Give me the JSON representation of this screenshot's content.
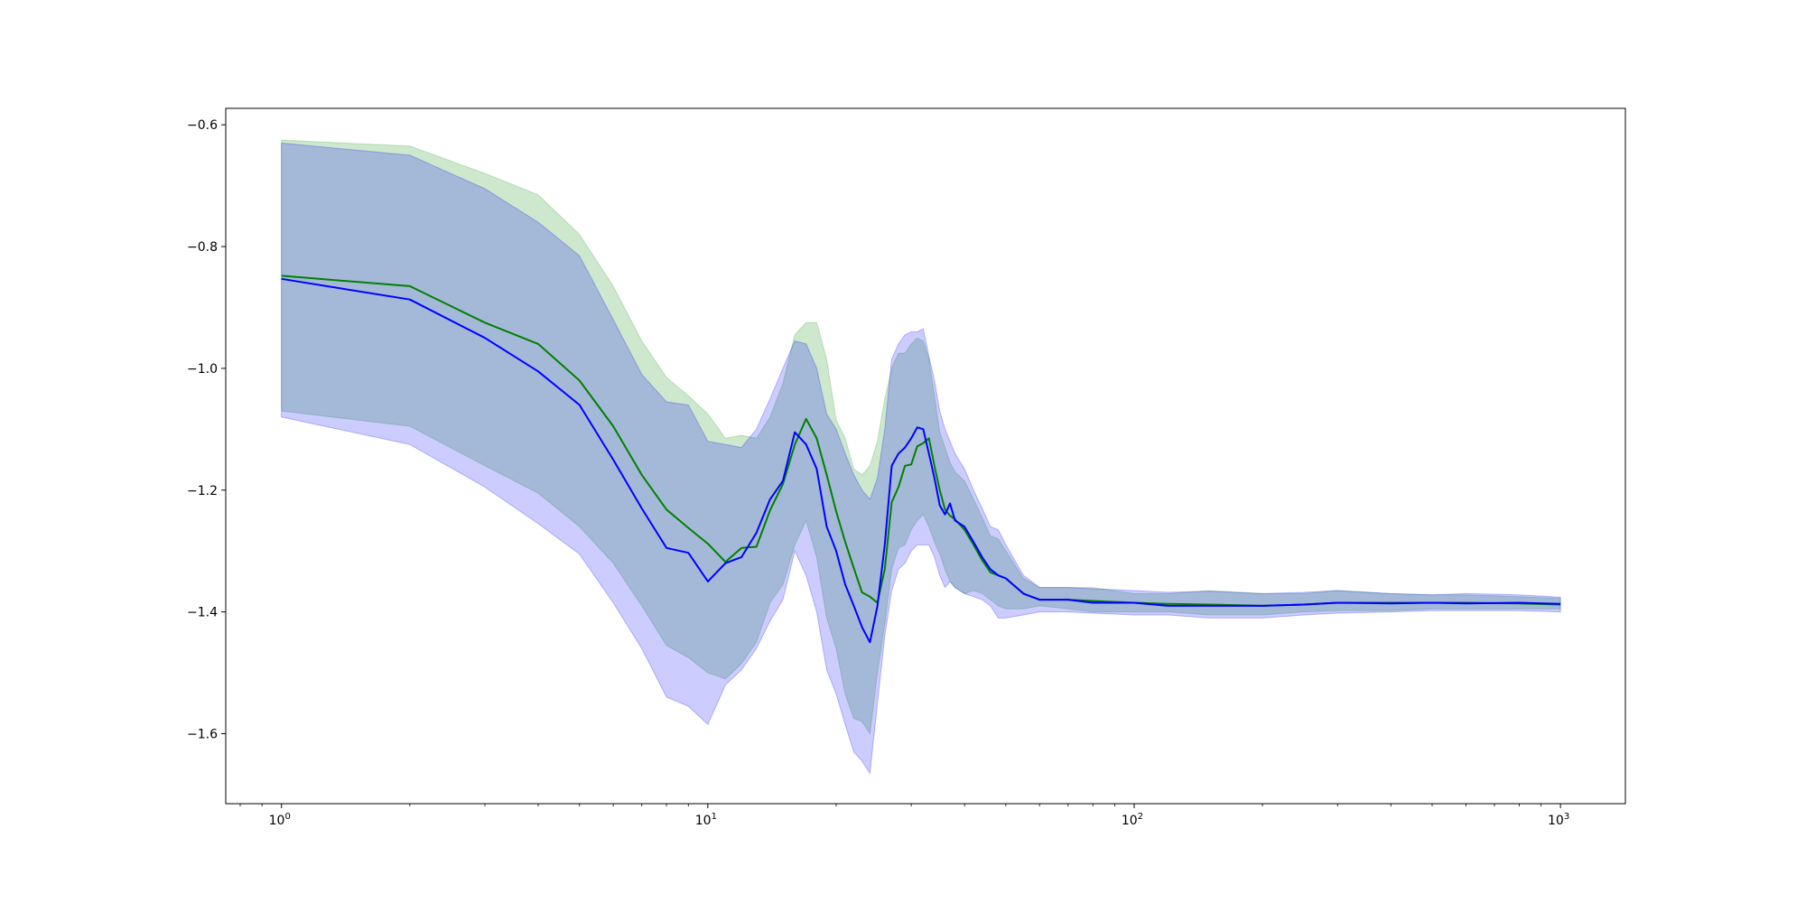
{
  "chart_data": {
    "type": "line",
    "title": "",
    "xlabel": "",
    "ylabel": "",
    "xscale": "log",
    "xlim": [
      0.74,
      1420
    ],
    "ylim": [
      -1.715,
      -0.573
    ],
    "grid": false,
    "legend": "none",
    "x_ticks": [
      {
        "base": "10",
        "exp": "0",
        "value": 1
      },
      {
        "base": "10",
        "exp": "1",
        "value": 10
      },
      {
        "base": "10",
        "exp": "2",
        "value": 100
      },
      {
        "base": "10",
        "exp": "3",
        "value": 1000
      }
    ],
    "y_ticks": [
      {
        "label": "−0.6",
        "value": -0.6
      },
      {
        "label": "−0.8",
        "value": -0.8
      },
      {
        "label": "−1.0",
        "value": -1.0
      },
      {
        "label": "−1.2",
        "value": -1.2
      },
      {
        "label": "−1.4",
        "value": -1.4
      },
      {
        "label": "−1.6",
        "value": -1.6
      }
    ],
    "series": [
      {
        "color": "#008000",
        "band_color": "#2ca02c",
        "x": [
          1,
          2,
          3,
          4,
          5,
          6,
          7,
          8,
          9,
          10,
          11,
          12,
          13,
          14,
          15,
          16,
          17,
          18,
          19,
          20,
          21,
          22,
          23,
          24,
          25,
          26,
          27,
          28,
          29,
          30,
          31,
          32,
          33,
          34,
          35,
          36,
          37,
          38,
          40,
          42,
          44,
          46,
          48,
          50,
          55,
          60,
          70,
          80,
          100,
          120,
          150,
          200,
          250,
          300,
          400,
          500,
          600,
          800,
          1000
        ],
        "y": [
          -0.848,
          -0.865,
          -0.925,
          -0.96,
          -1.02,
          -1.095,
          -1.175,
          -1.232,
          -1.262,
          -1.288,
          -1.318,
          -1.295,
          -1.293,
          -1.233,
          -1.19,
          -1.125,
          -1.083,
          -1.115,
          -1.175,
          -1.235,
          -1.285,
          -1.328,
          -1.368,
          -1.375,
          -1.385,
          -1.33,
          -1.22,
          -1.195,
          -1.16,
          -1.158,
          -1.128,
          -1.123,
          -1.115,
          -1.16,
          -1.2,
          -1.232,
          -1.242,
          -1.248,
          -1.265,
          -1.29,
          -1.315,
          -1.335,
          -1.34,
          -1.345,
          -1.37,
          -1.38,
          -1.38,
          -1.382,
          -1.385,
          -1.387,
          -1.388,
          -1.39,
          -1.388,
          -1.385,
          -1.385,
          -1.385,
          -1.385,
          -1.386,
          -1.388
        ],
        "lower": [
          -1.07,
          -1.095,
          -1.16,
          -1.205,
          -1.26,
          -1.32,
          -1.39,
          -1.455,
          -1.475,
          -1.5,
          -1.51,
          -1.485,
          -1.45,
          -1.385,
          -1.355,
          -1.29,
          -1.25,
          -1.31,
          -1.41,
          -1.46,
          -1.535,
          -1.575,
          -1.58,
          -1.6,
          -1.5,
          -1.42,
          -1.33,
          -1.295,
          -1.29,
          -1.265,
          -1.25,
          -1.24,
          -1.26,
          -1.285,
          -1.305,
          -1.33,
          -1.35,
          -1.36,
          -1.37,
          -1.365,
          -1.37,
          -1.38,
          -1.39,
          -1.395,
          -1.395,
          -1.39,
          -1.395,
          -1.4,
          -1.4,
          -1.4,
          -1.405,
          -1.405,
          -1.4,
          -1.398,
          -1.398,
          -1.395,
          -1.395,
          -1.395,
          -1.395
        ],
        "upper": [
          -0.625,
          -0.635,
          -0.68,
          -0.715,
          -0.78,
          -0.865,
          -0.955,
          -1.015,
          -1.045,
          -1.075,
          -1.115,
          -1.11,
          -1.115,
          -1.08,
          -1.025,
          -0.945,
          -0.925,
          -0.925,
          -0.985,
          -1.085,
          -1.115,
          -1.165,
          -1.175,
          -1.16,
          -1.12,
          -1.05,
          -1.0,
          -0.975,
          -0.975,
          -0.96,
          -0.95,
          -0.955,
          -0.985,
          -1.045,
          -1.105,
          -1.13,
          -1.155,
          -1.17,
          -1.185,
          -1.215,
          -1.245,
          -1.275,
          -1.28,
          -1.3,
          -1.345,
          -1.36,
          -1.36,
          -1.36,
          -1.37,
          -1.37,
          -1.365,
          -1.37,
          -1.37,
          -1.365,
          -1.37,
          -1.372,
          -1.372,
          -1.375,
          -1.378
        ]
      },
      {
        "color": "#0000ff",
        "band_color": "#0000ff",
        "x": [
          1,
          2,
          3,
          4,
          5,
          6,
          7,
          8,
          9,
          10,
          11,
          12,
          13,
          14,
          15,
          16,
          17,
          18,
          19,
          20,
          21,
          22,
          23,
          24,
          25,
          26,
          27,
          28,
          29,
          30,
          31,
          32,
          33,
          34,
          35,
          36,
          37,
          38,
          40,
          42,
          44,
          46,
          48,
          50,
          55,
          60,
          70,
          80,
          100,
          120,
          150,
          200,
          250,
          300,
          400,
          500,
          600,
          800,
          1000
        ],
        "y": [
          -0.853,
          -0.887,
          -0.95,
          -1.005,
          -1.06,
          -1.15,
          -1.23,
          -1.295,
          -1.303,
          -1.35,
          -1.32,
          -1.31,
          -1.27,
          -1.215,
          -1.185,
          -1.105,
          -1.125,
          -1.165,
          -1.26,
          -1.3,
          -1.355,
          -1.39,
          -1.425,
          -1.45,
          -1.39,
          -1.29,
          -1.16,
          -1.14,
          -1.13,
          -1.115,
          -1.097,
          -1.1,
          -1.14,
          -1.18,
          -1.225,
          -1.24,
          -1.222,
          -1.25,
          -1.26,
          -1.285,
          -1.31,
          -1.33,
          -1.34,
          -1.345,
          -1.37,
          -1.38,
          -1.38,
          -1.385,
          -1.385,
          -1.39,
          -1.39,
          -1.39,
          -1.388,
          -1.385,
          -1.386,
          -1.385,
          -1.386,
          -1.385,
          -1.387
        ],
        "lower": [
          -1.08,
          -1.125,
          -1.195,
          -1.255,
          -1.305,
          -1.385,
          -1.46,
          -1.54,
          -1.555,
          -1.585,
          -1.52,
          -1.495,
          -1.46,
          -1.415,
          -1.38,
          -1.3,
          -1.34,
          -1.4,
          -1.495,
          -1.535,
          -1.585,
          -1.63,
          -1.645,
          -1.665,
          -1.55,
          -1.44,
          -1.365,
          -1.33,
          -1.32,
          -1.3,
          -1.29,
          -1.29,
          -1.29,
          -1.31,
          -1.34,
          -1.36,
          -1.35,
          -1.36,
          -1.37,
          -1.375,
          -1.38,
          -1.39,
          -1.41,
          -1.41,
          -1.405,
          -1.4,
          -1.4,
          -1.402,
          -1.405,
          -1.405,
          -1.41,
          -1.41,
          -1.405,
          -1.402,
          -1.4,
          -1.398,
          -1.398,
          -1.398,
          -1.4
        ],
        "upper": [
          -0.63,
          -0.65,
          -0.705,
          -0.76,
          -0.815,
          -0.92,
          -1.01,
          -1.055,
          -1.06,
          -1.12,
          -1.125,
          -1.13,
          -1.1,
          -1.05,
          -1.0,
          -0.955,
          -0.96,
          -1.0,
          -1.075,
          -1.1,
          -1.14,
          -1.175,
          -1.2,
          -1.215,
          -1.18,
          -1.1,
          -0.985,
          -0.96,
          -0.945,
          -0.94,
          -0.94,
          -0.935,
          -0.98,
          -1.02,
          -1.07,
          -1.1,
          -1.12,
          -1.14,
          -1.165,
          -1.2,
          -1.23,
          -1.26,
          -1.265,
          -1.29,
          -1.34,
          -1.36,
          -1.36,
          -1.362,
          -1.365,
          -1.368,
          -1.366,
          -1.37,
          -1.368,
          -1.365,
          -1.37,
          -1.372,
          -1.37,
          -1.372,
          -1.376
        ]
      }
    ]
  }
}
